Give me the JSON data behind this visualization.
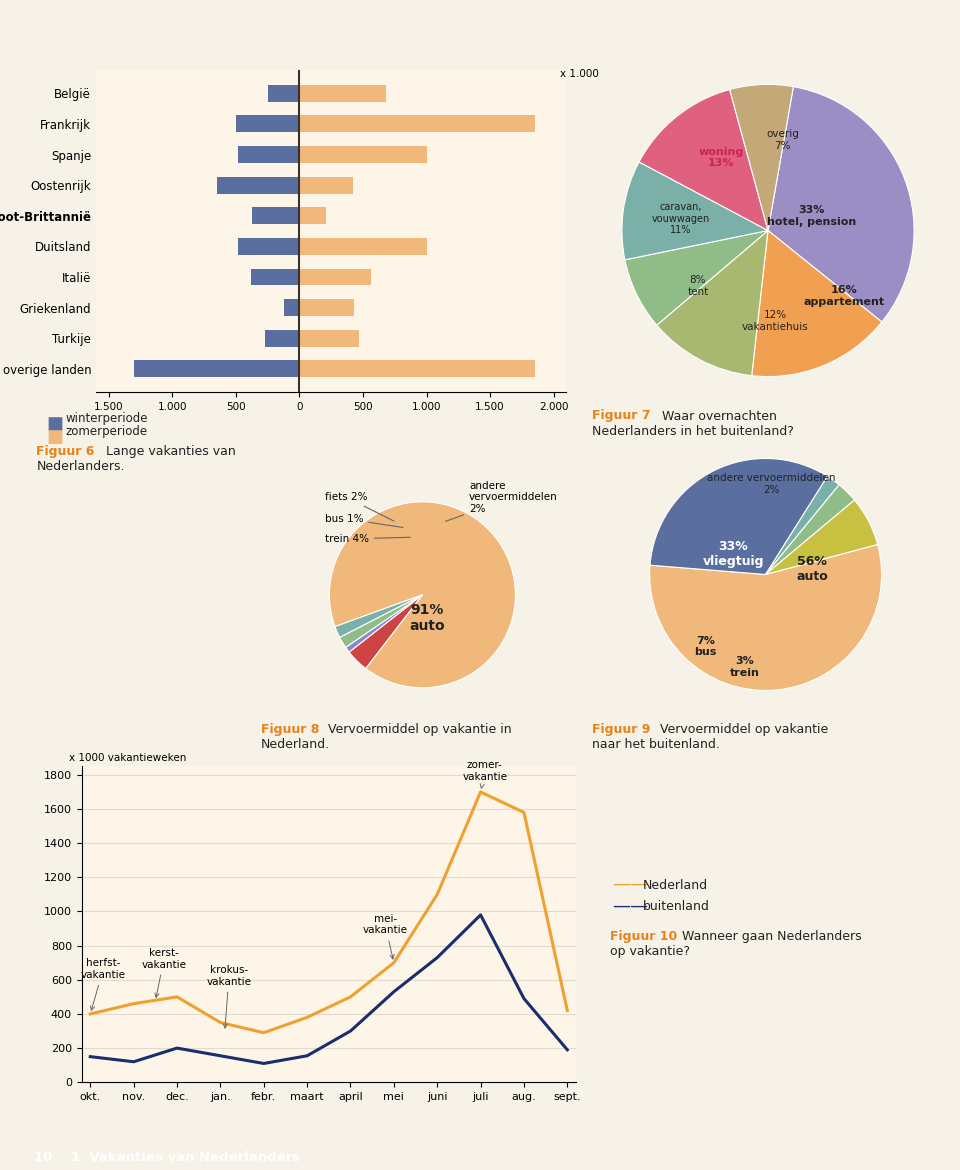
{
  "page_bg": "#f7f2e8",
  "chart_bg": "#fdf6e8",
  "orange_header": "#e8821a",
  "blue_footer": "#1a3060",
  "fig6_countries": [
    "België",
    "Frankrijk",
    "Spanje",
    "Oostenrijk",
    "Groot-Brittannië",
    "Duitsland",
    "Italië",
    "Griekenland",
    "Turkije",
    "overige landen"
  ],
  "fig6_winter": [
    250,
    500,
    480,
    650,
    370,
    480,
    380,
    120,
    270,
    1300
  ],
  "fig6_summer": [
    680,
    1850,
    1000,
    420,
    210,
    1000,
    560,
    430,
    470,
    1850
  ],
  "fig6_color_winter": "#5a6fa0",
  "fig6_color_summer": "#f0b87a",
  "fig6_xlim": [
    -1600,
    2100
  ],
  "fig6_legend_winter": "winterperiode",
  "fig6_legend_summer": "zomerperiode",
  "fig7_labels": [
    "hotel, pension",
    "appartement",
    "vakantiehuis",
    "tent",
    "caravan,\nvouwwagen",
    "woning",
    "overig"
  ],
  "fig7_sizes": [
    33,
    16,
    12,
    8,
    11,
    13,
    7
  ],
  "fig7_colors": [
    "#9b8ec4",
    "#f0a050",
    "#a8b870",
    "#90bc88",
    "#7ab0a8",
    "#e06080",
    "#c4a878"
  ],
  "fig8_sizes": [
    91,
    4,
    1,
    2,
    2
  ],
  "fig8_colors": [
    "#f0b87a",
    "#cc4444",
    "#8888cc",
    "#90bc88",
    "#7ab0a8"
  ],
  "fig9_sizes": [
    56,
    33,
    2,
    3,
    7
  ],
  "fig9_colors": [
    "#f0b87a",
    "#5a6fa0",
    "#7ab0a8",
    "#90bc88",
    "#c8c040"
  ],
  "fig10_xticks": [
    "okt.",
    "nov.",
    "dec.",
    "jan.",
    "febr.",
    "maart",
    "april",
    "mei",
    "juni",
    "juli",
    "aug.",
    "sept."
  ],
  "fig10_yticks": [
    0,
    200,
    400,
    600,
    800,
    1000,
    1200,
    1400,
    1600,
    1800
  ],
  "fig10_nederland": [
    400,
    460,
    500,
    350,
    290,
    380,
    500,
    700,
    1100,
    1700,
    1580,
    420
  ],
  "fig10_buitenland": [
    150,
    120,
    200,
    155,
    110,
    155,
    300,
    530,
    730,
    980,
    490,
    190
  ],
  "fig10_color_nl": "#f0a030",
  "fig10_color_buitenland": "#1a2d6e",
  "accent_orange": "#e8821a",
  "footer_text": "10    1  Vakanties van Nederlanders"
}
